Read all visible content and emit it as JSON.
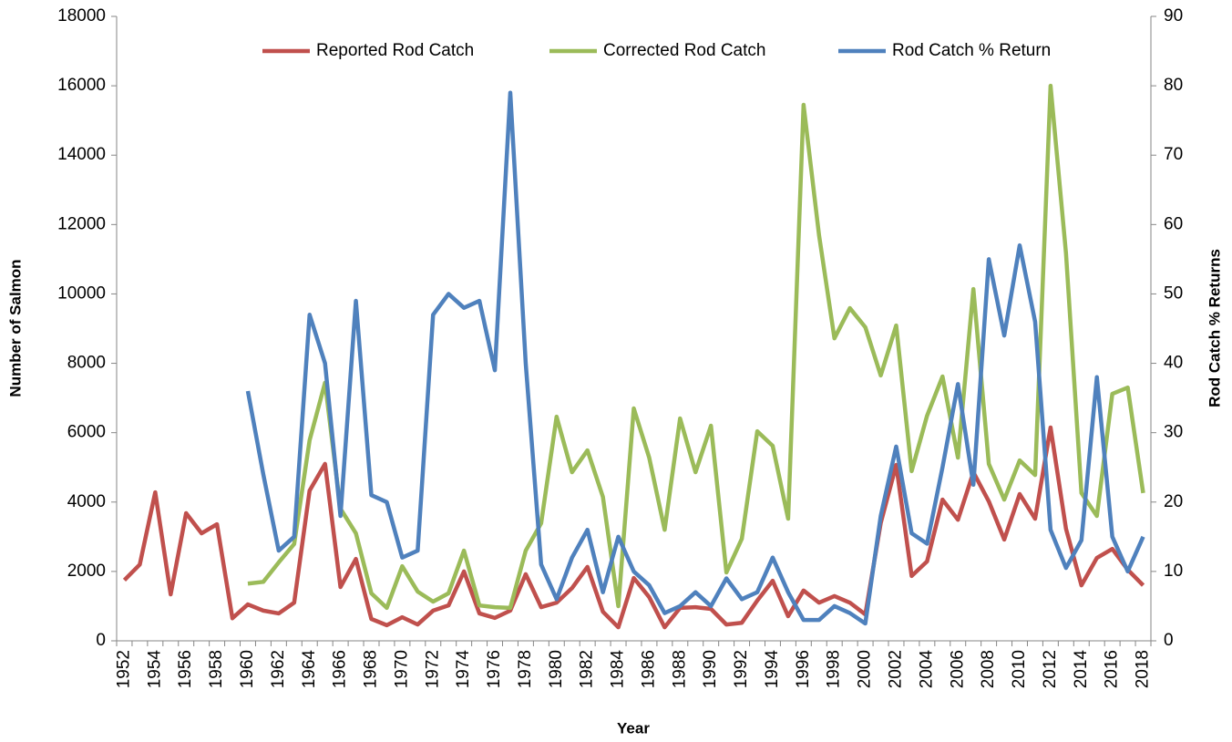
{
  "chart_data": {
    "type": "line",
    "xlabel": "Year",
    "ylabel": "Number of Salmon",
    "y2label": "Rod Catch % Returns",
    "categories": [
      "1952",
      null,
      "1954",
      null,
      "1956",
      null,
      "1958",
      null,
      "1960",
      null,
      "1962",
      null,
      "1964",
      null,
      "1966",
      null,
      "1968",
      null,
      "1970",
      null,
      "1972",
      null,
      "1974",
      null,
      "1976",
      null,
      "1978",
      null,
      "1980",
      null,
      "1982",
      null,
      "1984",
      null,
      "1986",
      null,
      "1988",
      null,
      "1990",
      null,
      "1992",
      null,
      "1994",
      null,
      "1996",
      null,
      "1998",
      null,
      "2000",
      null,
      "2002",
      null,
      "2004",
      null,
      "2006",
      null,
      "2008",
      null,
      "2010",
      null,
      "2012",
      null,
      "2014",
      null,
      "2016",
      null,
      "2018"
    ],
    "ylim": [
      0,
      18000
    ],
    "yticks": [
      0,
      2000,
      4000,
      6000,
      8000,
      10000,
      12000,
      14000,
      16000,
      18000
    ],
    "y2lim": [
      0,
      90
    ],
    "y2ticks": [
      0,
      10,
      20,
      30,
      40,
      50,
      60,
      70,
      80,
      90
    ],
    "legend": "upper center",
    "series": [
      {
        "name": "Reported Rod Catch",
        "color": "#c0504d",
        "values": [
          1750,
          2200,
          4280,
          1340,
          3680,
          3100,
          3360,
          650,
          1050,
          870,
          790,
          1100,
          4330,
          5100,
          1550,
          2360,
          630,
          450,
          680,
          470,
          870,
          1020,
          2000,
          790,
          660,
          870,
          1920,
          970,
          1100,
          1520,
          2130,
          840,
          390,
          1810,
          1260,
          390,
          950,
          970,
          920,
          470,
          520,
          1160,
          1730,
          710,
          1450,
          1100,
          1290,
          1100,
          760,
          3400,
          5070,
          1870,
          2290,
          4070,
          3490,
          4860,
          4020,
          2920,
          4230,
          3520,
          6150,
          3230,
          1600,
          2390,
          2650,
          2050,
          1600
        ]
      },
      {
        "name": "Corrected Rod Catch",
        "color": "#9bbb59",
        "values": [
          null,
          null,
          null,
          null,
          null,
          null,
          null,
          null,
          1650,
          1700,
          2260,
          2790,
          5780,
          7440,
          3810,
          3100,
          1370,
          950,
          2150,
          1420,
          1130,
          1370,
          2600,
          1020,
          970,
          950,
          2600,
          3390,
          6460,
          4860,
          5490,
          4150,
          1000,
          6700,
          5280,
          3200,
          6410,
          4860,
          6200,
          1970,
          2940,
          6040,
          5620,
          3520,
          15450,
          11700,
          8720,
          9590,
          9040,
          7650,
          9090,
          4890,
          6490,
          7620,
          5280,
          10140,
          5100,
          4070,
          5200,
          4780,
          16000,
          11170,
          4260,
          3600,
          7120,
          7300,
          4260
        ]
      },
      {
        "name": "Rod Catch % Return",
        "color": "#4f81bd",
        "axis": "y2",
        "values": [
          null,
          null,
          null,
          null,
          null,
          null,
          null,
          null,
          36,
          24,
          13,
          15,
          47,
          40,
          18,
          49,
          21,
          20,
          12,
          13,
          47,
          50,
          48,
          49,
          39,
          79,
          40,
          11,
          6,
          12,
          16,
          7,
          15,
          10,
          8,
          4,
          5,
          7,
          5,
          9,
          6,
          7,
          12,
          7,
          3,
          3,
          5,
          4,
          2.5,
          18,
          28,
          15.5,
          14,
          25,
          37,
          22.5,
          55,
          44,
          57,
          46,
          16,
          10.5,
          14.5,
          38,
          15,
          10,
          15
        ]
      }
    ]
  }
}
